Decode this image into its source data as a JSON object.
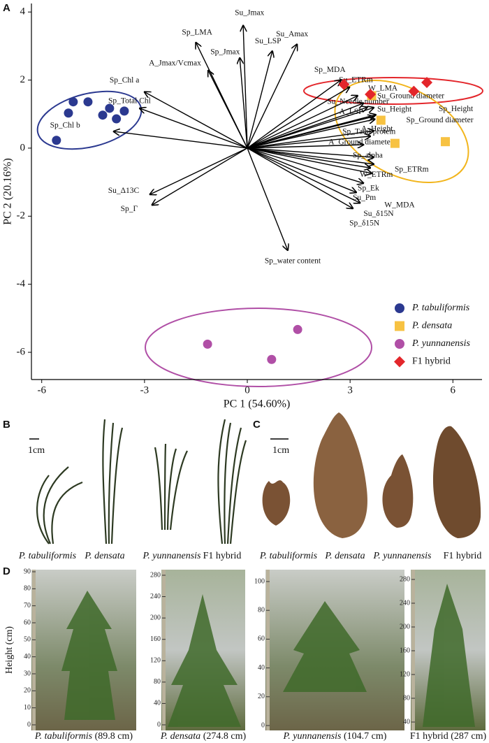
{
  "chart_data": {
    "type": "biplot",
    "panel": "A",
    "xlabel": "PC 1 (54.60%)",
    "ylabel": "PC 2 (20.16%)",
    "xlim": [
      -6.3,
      6.85
    ],
    "ylim": [
      -6.8,
      4.25
    ],
    "xticks": [
      -6,
      -3,
      0,
      3,
      6
    ],
    "yticks": [
      -6,
      -4,
      -2,
      0,
      2,
      4
    ],
    "series": [
      {
        "name": "P. tabuliformis",
        "color": "#2b3990",
        "marker": "circle",
        "x": [
          -5.08,
          -4.65,
          -5.22,
          -4.02,
          -4.22,
          -3.82,
          -3.59,
          -5.57
        ],
        "values": [
          1.36,
          1.36,
          1.03,
          1.17,
          0.97,
          0.86,
          1.09,
          0.23
        ]
      },
      {
        "name": "P. densata",
        "color": "#f7c242",
        "marker": "square",
        "x": [
          3.9,
          4.31,
          5.78,
          3.63
        ],
        "values": [
          0.82,
          0.14,
          0.19,
          1.54
        ]
      },
      {
        "name": "P. yunnanensis",
        "color": "#b04fa6",
        "marker": "circle",
        "x": [
          -1.16,
          1.47,
          0.71
        ],
        "values": [
          -5.76,
          -5.33,
          -6.21
        ]
      },
      {
        "name": "F1 hybrid",
        "color": "#e3262b",
        "marker": "diamond",
        "x": [
          2.82,
          3.59,
          4.86,
          5.24
        ],
        "values": [
          1.87,
          1.58,
          1.67,
          1.93
        ]
      }
    ],
    "loadings": [
      {
        "label": "Su_Jmax",
        "x": -0.12,
        "y": 3.6
      },
      {
        "label": "Sp_LMA",
        "x": -1.5,
        "y": 3.1
      },
      {
        "label": "Sp_Jmax",
        "x": -0.22,
        "y": 2.65
      },
      {
        "label": "Su_LSP",
        "x": 0.73,
        "y": 2.85
      },
      {
        "label": "Su_Amax",
        "x": 1.45,
        "y": 3.05
      },
      {
        "label": "A_Jmax/Vcmax",
        "x": -1.14,
        "y": 2.28
      },
      {
        "label": "Sp_Chl a",
        "x": -3.0,
        "y": 1.65
      },
      {
        "label": "Sp_Total Chl",
        "x": -3.14,
        "y": 1.17
      },
      {
        "label": "Sp_Chl b",
        "x": -3.9,
        "y": 0.49
      },
      {
        "label": "Su_Δ13C",
        "x": -2.84,
        "y": -1.36
      },
      {
        "label": "Sp_Γ",
        "x": -2.78,
        "y": -1.67
      },
      {
        "label": "Sp_water content",
        "x": 1.18,
        "y": -3.0
      },
      {
        "label": "Sp_MDA",
        "x": 2.73,
        "y": 2.0
      },
      {
        "label": "Su_ETRm",
        "x": 2.98,
        "y": 1.79
      },
      {
        "label": "W_LMA",
        "x": 3.22,
        "y": 1.54
      },
      {
        "label": "Su_Needle number",
        "x": 3.39,
        "y": 1.32
      },
      {
        "label": "A_LSP",
        "x": 3.5,
        "y": 1.2
      },
      {
        "label": "Su_Ground diameter",
        "x": 3.69,
        "y": 1.19
      },
      {
        "label": "Su_Height",
        "x": 3.69,
        "y": 0.93
      },
      {
        "label": "Sp_Height",
        "x": 3.75,
        "y": 0.98
      },
      {
        "label": "Sp_Ground diameter",
        "x": 3.72,
        "y": 0.85
      },
      {
        "label": "A_Height",
        "x": 3.69,
        "y": 0.51
      },
      {
        "label": "Sp_Tatal protein",
        "x": 3.59,
        "y": 0.35
      },
      {
        "label": "A_Ground diameter",
        "x": 3.39,
        "y": 0.1
      },
      {
        "label": "Sp_alpha",
        "x": 3.69,
        "y": -0.27
      },
      {
        "label": "W_ETRm",
        "x": 3.59,
        "y": -0.58
      },
      {
        "label": "Sp_ETRm",
        "x": 3.69,
        "y": -0.47
      },
      {
        "label": "Sp_Ek",
        "x": 3.63,
        "y": -0.74
      },
      {
        "label": "W_MDA",
        "x": 3.39,
        "y": -1.03
      },
      {
        "label": "Su_Pm",
        "x": 3.18,
        "y": -1.3
      },
      {
        "label": "Su_δ15N",
        "x": 3.29,
        "y": -1.61
      },
      {
        "label": "Sp_δ15N",
        "x": 3.08,
        "y": -1.77
      }
    ]
  },
  "panel_b": {
    "letter": "B",
    "scale": "1cm",
    "captions": [
      "P. tabuliformis",
      "P. densata",
      "P. yunnanensis",
      "F1 hybrid"
    ]
  },
  "panel_c": {
    "letter": "C",
    "scale": "1cm",
    "captions": [
      "P. tabuliformis",
      "P. densata",
      "P. yunnanensis",
      "F1 hybrid"
    ]
  },
  "panel_d": {
    "letter": "D",
    "ylabel": "Height (cm)",
    "photos": [
      {
        "species": "P. tabuliformis",
        "height": "(89.8 cm)",
        "ticks": [
          0,
          10,
          20,
          30,
          40,
          50,
          60,
          70,
          80,
          90
        ]
      },
      {
        "species": "P. densata",
        "height": "(274.8 cm)",
        "ticks": [
          0,
          40,
          80,
          120,
          160,
          200,
          240,
          280
        ]
      },
      {
        "species": "P. yunnanensis",
        "height": "(104.7 cm)",
        "ticks": [
          0,
          20,
          40,
          60,
          80,
          100
        ]
      },
      {
        "species": "F1 hybrid",
        "height": "(287 cm)",
        "ticks": [
          40,
          80,
          120,
          160,
          200,
          240,
          280
        ]
      }
    ]
  }
}
